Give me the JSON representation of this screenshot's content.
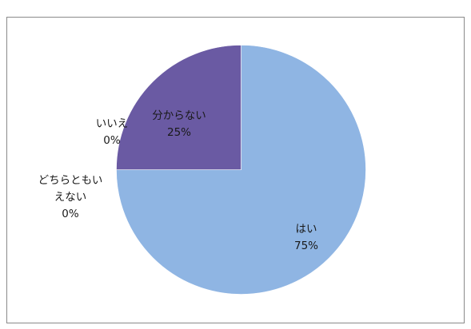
{
  "chart_data": {
    "type": "pie",
    "title": "",
    "start_angle": 0,
    "direction": "clockwise",
    "legend": "none",
    "slices": [
      {
        "label": "はい",
        "value": 75,
        "value_label": "75%",
        "color": "#8fb5e3"
      },
      {
        "label": "どちらともいえない",
        "label_lines": [
          "どちらともい",
          "えない"
        ],
        "value": 0,
        "value_label": "0%",
        "color": "#6fa0d8"
      },
      {
        "label": "いいえ",
        "value": 0,
        "value_label": "0%",
        "color": "#9b6fb0"
      },
      {
        "label": "分からない",
        "value": 25,
        "value_label": "25%",
        "color": "#6a5aa3"
      }
    ]
  }
}
